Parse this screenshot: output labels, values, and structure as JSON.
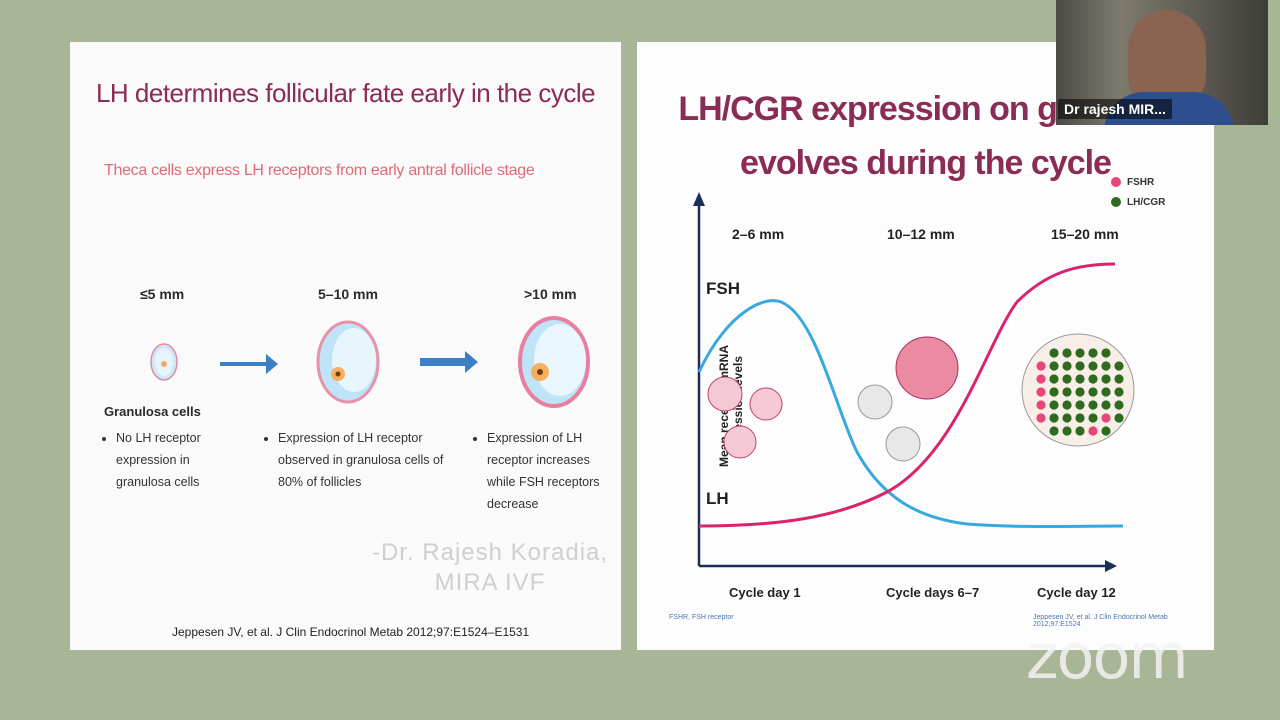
{
  "left_slide": {
    "title": "LH determines follicular fate early in the cycle",
    "subtitle": "Theca cells express LH receptors from early antral follicle stage",
    "stages": [
      {
        "size": "≤5 mm",
        "bullet": "No LH receptor expression in granulosa cells"
      },
      {
        "size": "5–10 mm",
        "bullet": "Expression of LH receptor observed in granulosa cells of 80% of follicles"
      },
      {
        "size": ">10 mm",
        "bullet": "Expression of LH receptor increases while FSH receptors decrease"
      }
    ],
    "granulosa_label": "Granulosa cells",
    "watermark_line1": "-Dr. Rajesh Koradia,",
    "watermark_line2": "MIRA IVF",
    "citation": "Jeppesen JV, et al. J Clin Endocrinol Metab 2012;97:E1524–E1531"
  },
  "right_slide": {
    "title_line1": "LH/CGR expression on granulos",
    "title_line2": "evolves during the cycle",
    "legend": [
      {
        "label": "FSHR",
        "color": "#e8457a"
      },
      {
        "label": "LH/CGR",
        "color": "#2e6b1e"
      }
    ],
    "y_axis_label": "Mean receptor mRNA expression levels",
    "stages": [
      "2–6 mm",
      "10–12 mm",
      "15–20 mm"
    ],
    "curve_labels": {
      "fsh": "FSH",
      "lh": "LH"
    },
    "x_labels": [
      "Cycle day 1",
      "Cycle days 6–7",
      "Cycle day 12"
    ],
    "footnote": "FSHR, FSH receptor",
    "ref": "Jeppesen JV, et al. J Clin Endocrinol Metab 2012;97:E1524"
  },
  "webcam": {
    "participant_name": "Dr rajesh MIR..."
  },
  "zoom_logo": "zoom",
  "colors": {
    "title": "#8a2c55",
    "fsh_curve": "#37a9de",
    "lh_curve": "#d9236e",
    "arrow": "#3c7fc4"
  }
}
